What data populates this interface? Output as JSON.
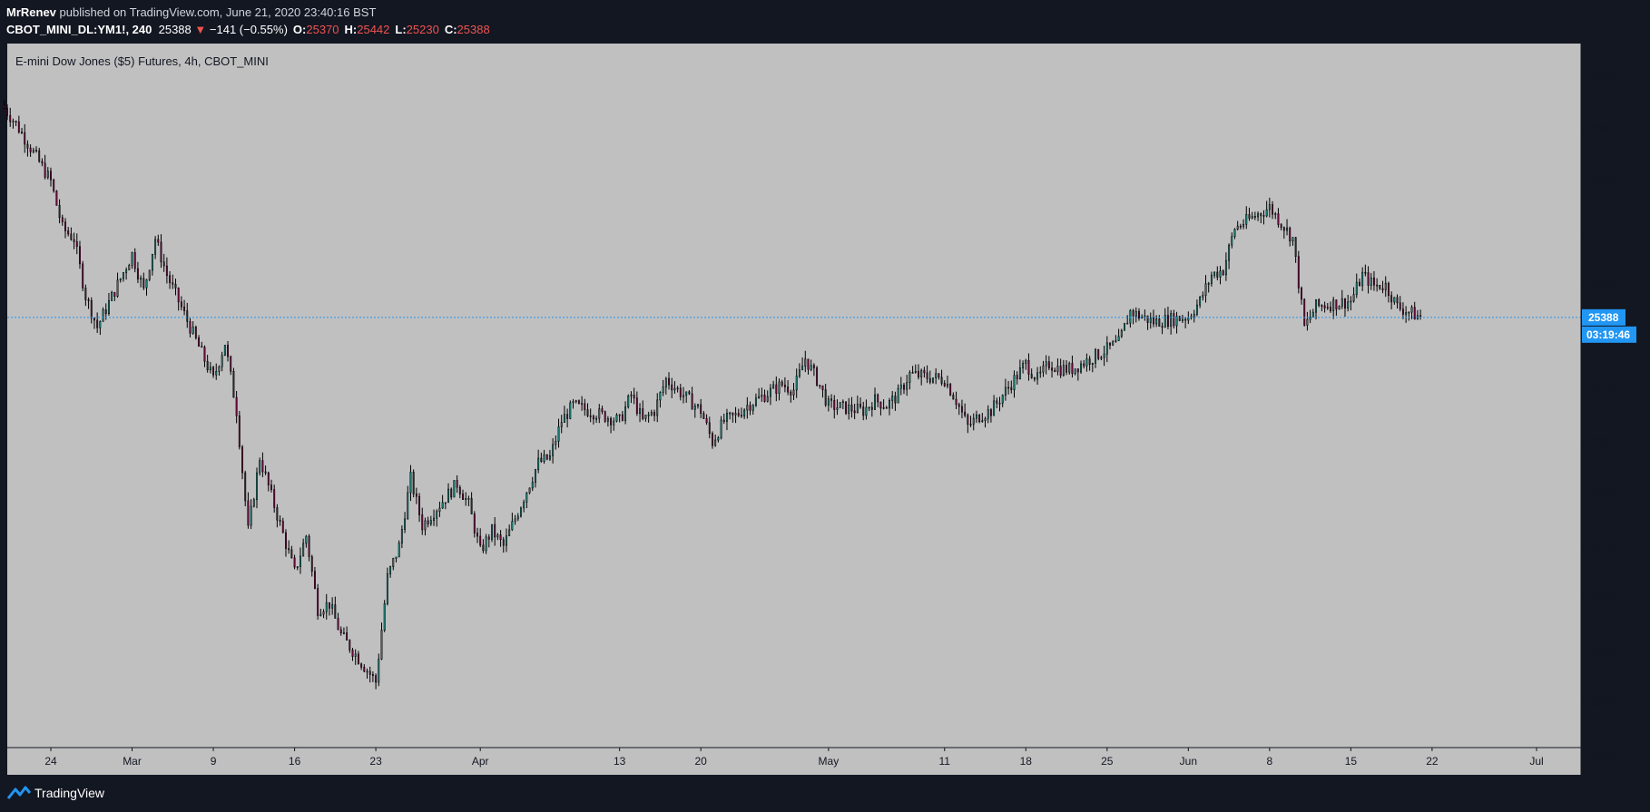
{
  "header": {
    "author": "MrRenev",
    "published_text": "published on TradingView.com, June 21, 2020 23:40:16 BST",
    "symbol": "CBOT_MINI_DL:YM1!, 240",
    "last_price": "25388",
    "change_arrow": "▼",
    "change": "−141 (−0.55%)",
    "open_label": "O:",
    "open": "25370",
    "high_label": "H:",
    "high": "25442",
    "low_label": "L:",
    "low": "25230",
    "close_label": "C:",
    "close": "25388"
  },
  "footer": {
    "brand": "TradingView",
    "logo_icon": "tradingview-logo-icon"
  },
  "colors": {
    "chrome_bg": "#131722",
    "plot_bg": "#c0c0c0",
    "up_candle": "#26a69a",
    "down_candle": "#880e4f",
    "wick": "#000000",
    "price_line": "#2196f3",
    "price_badge": "#2196f3",
    "negative": "#ef5350"
  },
  "chart_data": {
    "type": "candlestick",
    "title": "E-mini Dow Jones ($5) Futures, 4h, CBOT_MINI",
    "interval": "4h",
    "ylim": [
      17000,
      30500
    ],
    "y_ticks": [
      17000,
      18000,
      19000,
      20000,
      21000,
      22000,
      23000,
      24000,
      25000,
      26000,
      27000,
      28000,
      29000,
      30000
    ],
    "x_ticks": [
      {
        "label": "24",
        "date": "2020-02-24"
      },
      {
        "label": "Mar",
        "date": "2020-03-02"
      },
      {
        "label": "9",
        "date": "2020-03-09"
      },
      {
        "label": "16",
        "date": "2020-03-16"
      },
      {
        "label": "23",
        "date": "2020-03-23"
      },
      {
        "label": "Apr",
        "date": "2020-04-01"
      },
      {
        "label": "13",
        "date": "2020-04-13"
      },
      {
        "label": "20",
        "date": "2020-04-20"
      },
      {
        "label": "May",
        "date": "2020-05-01"
      },
      {
        "label": "11",
        "date": "2020-05-11"
      },
      {
        "label": "18",
        "date": "2020-05-18"
      },
      {
        "label": "25",
        "date": "2020-05-25"
      },
      {
        "label": "Jun",
        "date": "2020-06-01"
      },
      {
        "label": "8",
        "date": "2020-06-08"
      },
      {
        "label": "15",
        "date": "2020-06-15"
      },
      {
        "label": "22",
        "date": "2020-06-22"
      },
      {
        "label": "Jul",
        "date": "2020-07-01"
      }
    ],
    "close_path": [
      {
        "date": "2020-02-20",
        "close": 29400
      },
      {
        "date": "2020-02-21",
        "close": 29100
      },
      {
        "date": "2020-02-24",
        "close": 28000
      },
      {
        "date": "2020-02-25",
        "close": 27100
      },
      {
        "date": "2020-02-26",
        "close": 26900
      },
      {
        "date": "2020-02-27",
        "close": 25800
      },
      {
        "date": "2020-02-28",
        "close": 25200
      },
      {
        "date": "2020-03-02",
        "close": 26600
      },
      {
        "date": "2020-03-03",
        "close": 25900
      },
      {
        "date": "2020-03-04",
        "close": 26900
      },
      {
        "date": "2020-03-05",
        "close": 26200
      },
      {
        "date": "2020-03-06",
        "close": 25700
      },
      {
        "date": "2020-03-09",
        "close": 24200
      },
      {
        "date": "2020-03-10",
        "close": 24900
      },
      {
        "date": "2020-03-11",
        "close": 23600
      },
      {
        "date": "2020-03-12",
        "close": 21300
      },
      {
        "date": "2020-03-13",
        "close": 22700
      },
      {
        "date": "2020-03-16",
        "close": 20500
      },
      {
        "date": "2020-03-17",
        "close": 21200
      },
      {
        "date": "2020-03-18",
        "close": 19800
      },
      {
        "date": "2020-03-19",
        "close": 19900
      },
      {
        "date": "2020-03-20",
        "close": 19300
      },
      {
        "date": "2020-03-23",
        "close": 18400
      },
      {
        "date": "2020-03-24",
        "close": 20400
      },
      {
        "date": "2020-03-25",
        "close": 21000
      },
      {
        "date": "2020-03-26",
        "close": 22300
      },
      {
        "date": "2020-03-27",
        "close": 21400
      },
      {
        "date": "2020-03-30",
        "close": 22200
      },
      {
        "date": "2020-03-31",
        "close": 21800
      },
      {
        "date": "2020-04-01",
        "close": 20900
      },
      {
        "date": "2020-04-02",
        "close": 21300
      },
      {
        "date": "2020-04-03",
        "close": 21000
      },
      {
        "date": "2020-04-06",
        "close": 22600
      },
      {
        "date": "2020-04-07",
        "close": 22700
      },
      {
        "date": "2020-04-08",
        "close": 23400
      },
      {
        "date": "2020-04-09",
        "close": 23700
      },
      {
        "date": "2020-04-13",
        "close": 23400
      },
      {
        "date": "2020-04-14",
        "close": 23900
      },
      {
        "date": "2020-04-15",
        "close": 23400
      },
      {
        "date": "2020-04-16",
        "close": 23600
      },
      {
        "date": "2020-04-17",
        "close": 24200
      },
      {
        "date": "2020-04-20",
        "close": 23600
      },
      {
        "date": "2020-04-21",
        "close": 23000
      },
      {
        "date": "2020-04-22",
        "close": 23400
      },
      {
        "date": "2020-04-23",
        "close": 23500
      },
      {
        "date": "2020-04-24",
        "close": 23700
      },
      {
        "date": "2020-04-27",
        "close": 24100
      },
      {
        "date": "2020-04-28",
        "close": 24000
      },
      {
        "date": "2020-04-29",
        "close": 24600
      },
      {
        "date": "2020-04-30",
        "close": 24200
      },
      {
        "date": "2020-05-01",
        "close": 23700
      },
      {
        "date": "2020-05-04",
        "close": 23600
      },
      {
        "date": "2020-05-05",
        "close": 23800
      },
      {
        "date": "2020-05-06",
        "close": 23700
      },
      {
        "date": "2020-05-07",
        "close": 23900
      },
      {
        "date": "2020-05-08",
        "close": 24300
      },
      {
        "date": "2020-05-11",
        "close": 24200
      },
      {
        "date": "2020-05-12",
        "close": 23800
      },
      {
        "date": "2020-05-13",
        "close": 23300
      },
      {
        "date": "2020-05-14",
        "close": 23500
      },
      {
        "date": "2020-05-15",
        "close": 23600
      },
      {
        "date": "2020-05-18",
        "close": 24500
      },
      {
        "date": "2020-05-19",
        "close": 24200
      },
      {
        "date": "2020-05-20",
        "close": 24500
      },
      {
        "date": "2020-05-21",
        "close": 24400
      },
      {
        "date": "2020-05-22",
        "close": 24400
      },
      {
        "date": "2020-05-26",
        "close": 24900
      },
      {
        "date": "2020-05-27",
        "close": 25500
      },
      {
        "date": "2020-05-28",
        "close": 25400
      },
      {
        "date": "2020-05-29",
        "close": 25300
      },
      {
        "date": "2020-06-01",
        "close": 25400
      },
      {
        "date": "2020-06-02",
        "close": 25700
      },
      {
        "date": "2020-06-03",
        "close": 26200
      },
      {
        "date": "2020-06-04",
        "close": 26300
      },
      {
        "date": "2020-06-05",
        "close": 27100
      },
      {
        "date": "2020-06-08",
        "close": 27500
      },
      {
        "date": "2020-06-09",
        "close": 27200
      },
      {
        "date": "2020-06-10",
        "close": 26900
      },
      {
        "date": "2020-06-11",
        "close": 25200
      },
      {
        "date": "2020-06-12",
        "close": 25600
      },
      {
        "date": "2020-06-15",
        "close": 25700
      },
      {
        "date": "2020-06-16",
        "close": 26200
      },
      {
        "date": "2020-06-17",
        "close": 26000
      },
      {
        "date": "2020-06-18",
        "close": 26000
      },
      {
        "date": "2020-06-19",
        "close": 25600
      },
      {
        "date": "2020-06-21",
        "close": 25388
      }
    ],
    "last_price": 25388,
    "last_price_label": "25388",
    "countdown": "03:19:46",
    "grid": false
  }
}
